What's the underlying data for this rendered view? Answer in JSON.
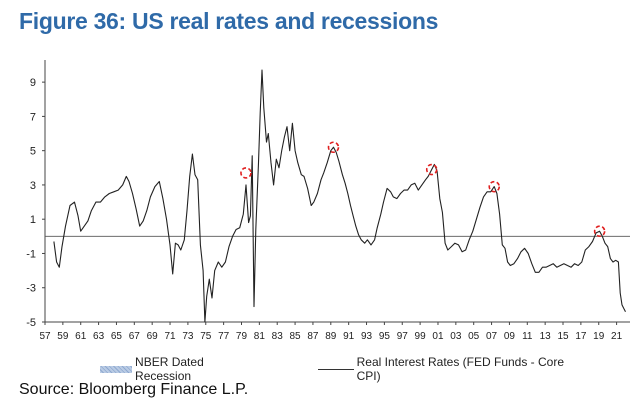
{
  "title": "Figure 36: US real rates and recessions",
  "source": "Source: Bloomberg Finance L.P.",
  "chart_data": {
    "type": "line",
    "title": "Figure 36: US real rates and recessions",
    "xlabel": "",
    "ylabel": "",
    "xlim": [
      1957,
      2022.5
    ],
    "ylim": [
      -5,
      10
    ],
    "yticks": [
      9,
      7,
      5,
      3,
      1,
      -1,
      -3,
      -5
    ],
    "xtick_labels": [
      "57",
      "59",
      "61",
      "63",
      "65",
      "67",
      "69",
      "71",
      "73",
      "75",
      "77",
      "79",
      "81",
      "83",
      "85",
      "87",
      "89",
      "91",
      "93",
      "95",
      "97",
      "99",
      "01",
      "03",
      "05",
      "07",
      "09",
      "11",
      "13",
      "15",
      "17",
      "19",
      "21"
    ],
    "grid": false,
    "legend_position": "bottom",
    "legend": [
      "NBER Dated Recession",
      "Real Interest Rates (FED Funds - Core CPI)"
    ],
    "recessions": [],
    "marked_peaks": [
      {
        "x": 1979.5,
        "y": 3.7
      },
      {
        "x": 1989.3,
        "y": 5.2
      },
      {
        "x": 2000.3,
        "y": 3.9
      },
      {
        "x": 2007.3,
        "y": 2.9
      },
      {
        "x": 2019.1,
        "y": 0.3
      }
    ],
    "series": [
      {
        "name": "Real Interest Rates (FED Funds - Core CPI)",
        "color": "#222222",
        "points": [
          [
            1958.0,
            -0.3
          ],
          [
            1958.3,
            -1.5
          ],
          [
            1958.6,
            -1.8
          ],
          [
            1958.9,
            -0.6
          ],
          [
            1959.3,
            0.6
          ],
          [
            1959.8,
            1.8
          ],
          [
            1960.3,
            2.0
          ],
          [
            1960.7,
            1.2
          ],
          [
            1961.0,
            0.3
          ],
          [
            1961.4,
            0.6
          ],
          [
            1961.8,
            0.9
          ],
          [
            1962.2,
            1.5
          ],
          [
            1962.7,
            2.0
          ],
          [
            1963.2,
            2.0
          ],
          [
            1963.7,
            2.3
          ],
          [
            1964.2,
            2.5
          ],
          [
            1964.7,
            2.6
          ],
          [
            1965.2,
            2.7
          ],
          [
            1965.7,
            3.0
          ],
          [
            1966.1,
            3.5
          ],
          [
            1966.4,
            3.2
          ],
          [
            1966.8,
            2.5
          ],
          [
            1967.2,
            1.6
          ],
          [
            1967.6,
            0.6
          ],
          [
            1968.0,
            0.9
          ],
          [
            1968.4,
            1.5
          ],
          [
            1968.8,
            2.3
          ],
          [
            1969.3,
            2.9
          ],
          [
            1969.8,
            3.2
          ],
          [
            1970.2,
            2.2
          ],
          [
            1970.6,
            1.0
          ],
          [
            1971.0,
            -0.5
          ],
          [
            1971.3,
            -2.2
          ],
          [
            1971.6,
            -0.4
          ],
          [
            1971.9,
            -0.5
          ],
          [
            1972.2,
            -0.8
          ],
          [
            1972.6,
            -0.2
          ],
          [
            1972.9,
            1.5
          ],
          [
            1973.2,
            3.5
          ],
          [
            1973.5,
            4.8
          ],
          [
            1973.8,
            3.6
          ],
          [
            1974.1,
            3.3
          ],
          [
            1974.4,
            -0.5
          ],
          [
            1974.7,
            -2.0
          ],
          [
            1974.9,
            -5.0
          ],
          [
            1975.1,
            -3.5
          ],
          [
            1975.4,
            -2.5
          ],
          [
            1975.7,
            -3.6
          ],
          [
            1976.0,
            -2.0
          ],
          [
            1976.4,
            -1.5
          ],
          [
            1976.8,
            -1.8
          ],
          [
            1977.2,
            -1.5
          ],
          [
            1977.6,
            -0.6
          ],
          [
            1978.0,
            0.0
          ],
          [
            1978.4,
            0.4
          ],
          [
            1978.8,
            0.5
          ],
          [
            1979.2,
            1.3
          ],
          [
            1979.5,
            3.0
          ],
          [
            1979.8,
            0.8
          ],
          [
            1980.0,
            1.2
          ],
          [
            1980.2,
            4.7
          ],
          [
            1980.4,
            -4.1
          ],
          [
            1980.6,
            0.4
          ],
          [
            1980.9,
            4.3
          ],
          [
            1981.1,
            7.2
          ],
          [
            1981.3,
            9.7
          ],
          [
            1981.5,
            7.5
          ],
          [
            1981.8,
            5.5
          ],
          [
            1982.0,
            6.0
          ],
          [
            1982.3,
            4.3
          ],
          [
            1982.6,
            3.0
          ],
          [
            1982.9,
            4.5
          ],
          [
            1983.2,
            4.0
          ],
          [
            1983.5,
            5.0
          ],
          [
            1983.8,
            5.8
          ],
          [
            1984.1,
            6.4
          ],
          [
            1984.4,
            5.0
          ],
          [
            1984.7,
            6.6
          ],
          [
            1985.0,
            5.0
          ],
          [
            1985.3,
            4.3
          ],
          [
            1985.7,
            3.6
          ],
          [
            1986.0,
            3.5
          ],
          [
            1986.4,
            2.8
          ],
          [
            1986.8,
            1.8
          ],
          [
            1987.1,
            2.0
          ],
          [
            1987.5,
            2.5
          ],
          [
            1987.9,
            3.3
          ],
          [
            1988.2,
            3.7
          ],
          [
            1988.6,
            4.3
          ],
          [
            1989.0,
            5.0
          ],
          [
            1989.3,
            5.2
          ],
          [
            1989.6,
            4.9
          ],
          [
            1989.9,
            4.4
          ],
          [
            1990.3,
            3.6
          ],
          [
            1990.6,
            3.1
          ],
          [
            1990.9,
            2.5
          ],
          [
            1991.2,
            1.8
          ],
          [
            1991.5,
            1.2
          ],
          [
            1991.8,
            0.6
          ],
          [
            1992.1,
            0.1
          ],
          [
            1992.4,
            -0.2
          ],
          [
            1992.8,
            -0.4
          ],
          [
            1993.1,
            -0.2
          ],
          [
            1993.5,
            -0.5
          ],
          [
            1993.9,
            -0.2
          ],
          [
            1994.2,
            0.5
          ],
          [
            1994.6,
            1.3
          ],
          [
            1994.9,
            2.0
          ],
          [
            1995.3,
            2.8
          ],
          [
            1995.7,
            2.6
          ],
          [
            1996.0,
            2.3
          ],
          [
            1996.4,
            2.2
          ],
          [
            1996.8,
            2.5
          ],
          [
            1997.2,
            2.7
          ],
          [
            1997.6,
            2.7
          ],
          [
            1998.0,
            3.0
          ],
          [
            1998.4,
            3.1
          ],
          [
            1998.8,
            2.7
          ],
          [
            1999.2,
            3.0
          ],
          [
            1999.6,
            3.3
          ],
          [
            1999.9,
            3.5
          ],
          [
            2000.3,
            3.9
          ],
          [
            2000.6,
            4.2
          ],
          [
            2000.9,
            3.8
          ],
          [
            2001.2,
            2.2
          ],
          [
            2001.5,
            1.4
          ],
          [
            2001.8,
            -0.4
          ],
          [
            2002.1,
            -0.8
          ],
          [
            2002.5,
            -0.6
          ],
          [
            2002.9,
            -0.4
          ],
          [
            2003.3,
            -0.5
          ],
          [
            2003.7,
            -0.9
          ],
          [
            2004.1,
            -0.8
          ],
          [
            2004.5,
            -0.2
          ],
          [
            2004.9,
            0.3
          ],
          [
            2005.3,
            1.0
          ],
          [
            2005.7,
            1.7
          ],
          [
            2006.1,
            2.3
          ],
          [
            2006.5,
            2.6
          ],
          [
            2006.9,
            2.6
          ],
          [
            2007.3,
            2.9
          ],
          [
            2007.6,
            2.5
          ],
          [
            2007.9,
            1.3
          ],
          [
            2008.2,
            -0.5
          ],
          [
            2008.5,
            -0.7
          ],
          [
            2008.8,
            -1.5
          ],
          [
            2009.1,
            -1.7
          ],
          [
            2009.5,
            -1.6
          ],
          [
            2009.9,
            -1.3
          ],
          [
            2010.3,
            -0.9
          ],
          [
            2010.7,
            -0.7
          ],
          [
            2011.1,
            -1.0
          ],
          [
            2011.5,
            -1.6
          ],
          [
            2011.9,
            -2.1
          ],
          [
            2012.3,
            -2.1
          ],
          [
            2012.7,
            -1.8
          ],
          [
            2013.1,
            -1.8
          ],
          [
            2013.5,
            -1.7
          ],
          [
            2013.9,
            -1.6
          ],
          [
            2014.3,
            -1.8
          ],
          [
            2014.7,
            -1.7
          ],
          [
            2015.1,
            -1.6
          ],
          [
            2015.5,
            -1.7
          ],
          [
            2015.9,
            -1.8
          ],
          [
            2016.3,
            -1.6
          ],
          [
            2016.7,
            -1.7
          ],
          [
            2017.1,
            -1.5
          ],
          [
            2017.5,
            -0.8
          ],
          [
            2017.9,
            -0.6
          ],
          [
            2018.3,
            -0.3
          ],
          [
            2018.7,
            0.2
          ],
          [
            2019.1,
            0.3
          ],
          [
            2019.4,
            0.0
          ],
          [
            2019.7,
            -0.4
          ],
          [
            2020.0,
            -0.6
          ],
          [
            2020.3,
            -1.3
          ],
          [
            2020.6,
            -1.5
          ],
          [
            2020.9,
            -1.4
          ],
          [
            2021.2,
            -1.5
          ],
          [
            2021.4,
            -3.3
          ],
          [
            2021.6,
            -4.0
          ],
          [
            2021.8,
            -4.2
          ],
          [
            2022.0,
            -4.4
          ]
        ]
      }
    ]
  }
}
